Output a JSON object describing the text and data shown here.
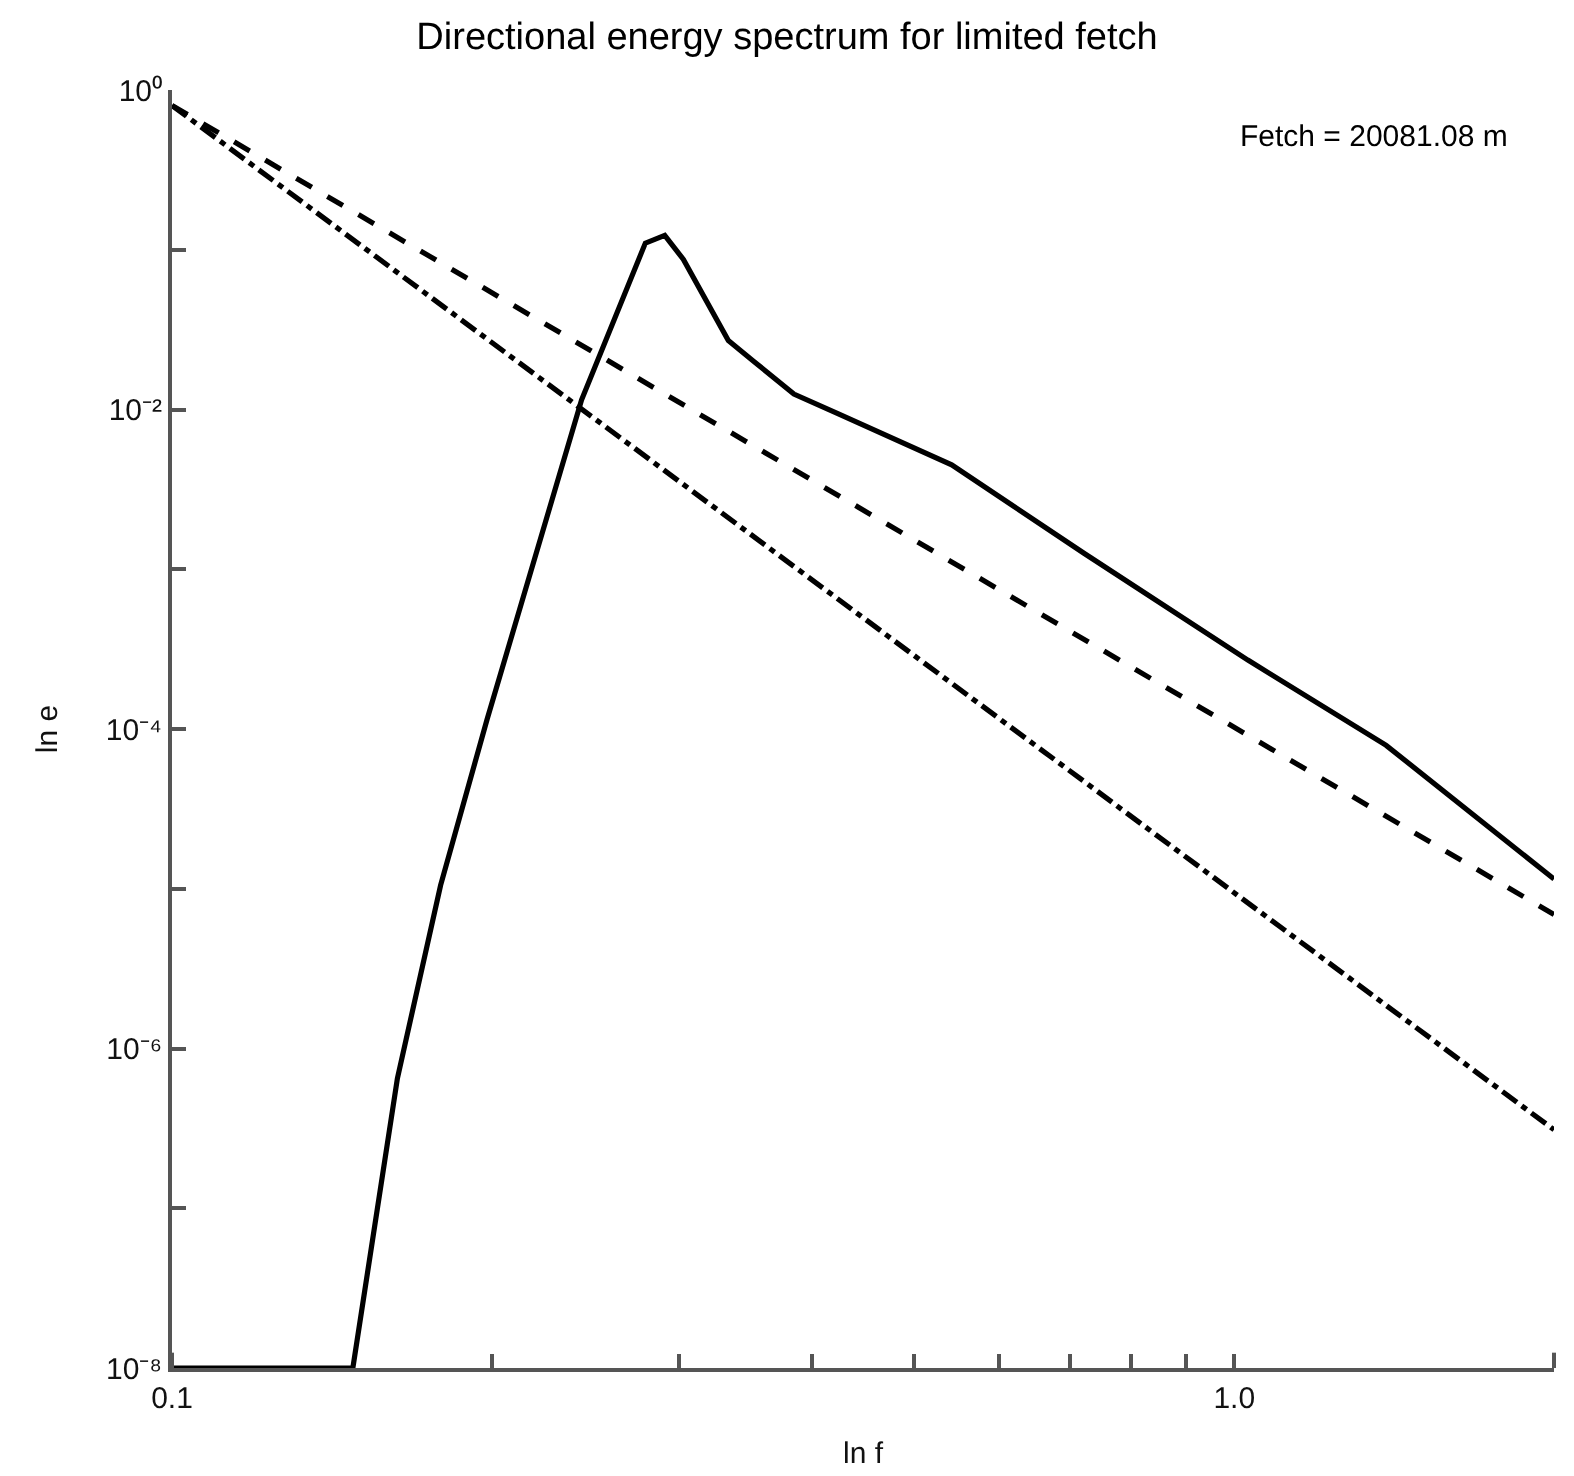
{
  "chart_data": {
    "type": "line",
    "title": "Directional energy spectrum for limited fetch",
    "xlabel": "ln f",
    "ylabel": "ln e",
    "annotations": [
      "Fetch = 20081.08 m"
    ],
    "log": "xy",
    "xlim": [
      0.1,
      2.0
    ],
    "xticks": [
      0.1,
      {
        "value": 0.2,
        "label": null
      },
      {
        "value": 0.3,
        "label": null
      },
      {
        "value": 0.4,
        "label": null
      },
      {
        "value": 0.5,
        "label": null
      },
      {
        "value": 0.6,
        "label": null
      },
      {
        "value": 0.7,
        "label": null
      },
      {
        "value": 0.8,
        "label": null
      },
      {
        "value": 0.9,
        "label": null
      },
      {
        "value": 1,
        "label": "1.0"
      },
      {
        "value": 2,
        "label": null
      }
    ],
    "ylim": [
      1e-08,
      1
    ],
    "yticks": [
      {
        "value": 1e-08,
        "label": "10⁻⁸"
      },
      {
        "value": 1e-07,
        "label": null
      },
      {
        "value": 1e-06,
        "label": "10⁻⁶"
      },
      {
        "value": 1e-05,
        "label": null
      },
      {
        "value": 0.0001,
        "label": "10⁻⁴"
      },
      {
        "value": 0.001,
        "label": null
      },
      {
        "value": 0.01,
        "label": "10⁻²"
      },
      {
        "value": 0.1,
        "label": null
      },
      {
        "value": 1,
        "label": "10⁰"
      }
    ],
    "series": [
      {
        "color": "#000000",
        "line_style": "solid",
        "x": [
          0.1,
          0.148,
          0.163,
          0.179,
          0.198,
          0.243,
          0.279,
          0.291,
          0.303,
          0.334,
          0.353,
          0.385,
          0.424,
          0.542,
          0.722,
          1.03,
          1.39,
          2.0
        ],
        "values": [
          1e-08,
          1e-08,
          6.5e-07,
          1.05e-05,
          0.000115,
          0.0115,
          0.11,
          0.123,
          0.087,
          0.027,
          0.02,
          0.0125,
          0.0094,
          0.0045,
          0.00126,
          0.00027,
          7.9e-05,
          1.15e-05
        ]
      },
      {
        "color": "#000000",
        "line_style": "dashed",
        "x": [
          0.1,
          2.0
        ],
        "values": [
          0.8,
          6.9e-06
        ]
      },
      {
        "color": "#000000",
        "line_style": "dashdot",
        "x": [
          0.1,
          2.0
        ],
        "values": [
          0.8,
          3.1e-07
        ]
      }
    ]
  }
}
